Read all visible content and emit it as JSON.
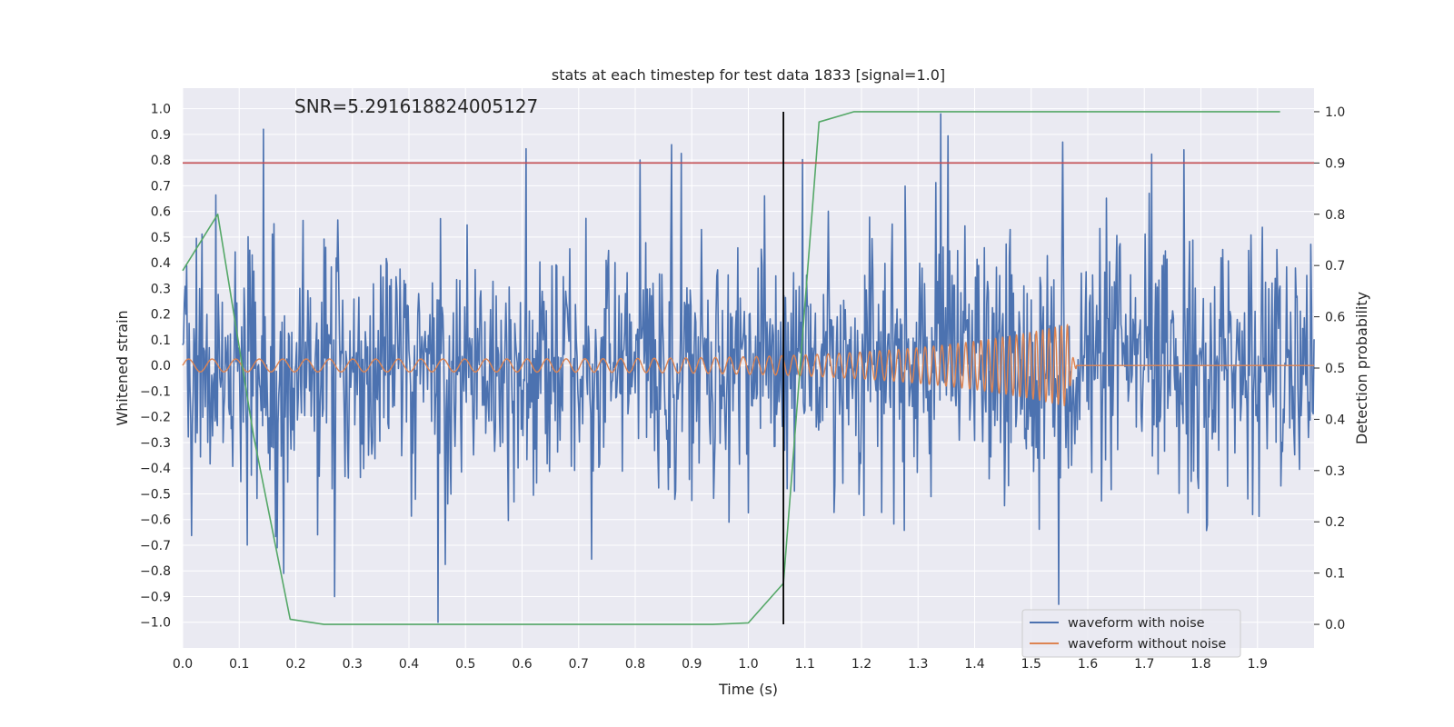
{
  "chart_data": {
    "type": "line",
    "title": "stats at each timestep for test data 1833 [signal=1.0]",
    "xlabel": "Time (s)",
    "ylabel": "Whitened strain",
    "y2label": "Detection probability",
    "xlim": [
      0.0,
      2.0
    ],
    "ylim": [
      -1.1,
      1.08
    ],
    "y2lim": [
      -0.046,
      1.046
    ],
    "xticks": [
      "0.0",
      "0.1",
      "0.2",
      "0.3",
      "0.4",
      "0.5",
      "0.6",
      "0.7",
      "0.8",
      "0.9",
      "1.0",
      "1.1",
      "1.2",
      "1.3",
      "1.4",
      "1.5",
      "1.6",
      "1.7",
      "1.8",
      "1.9"
    ],
    "yticks": [
      "1.0",
      "0.9",
      "0.8",
      "0.7",
      "0.6",
      "0.5",
      "0.4",
      "0.3",
      "0.2",
      "0.1",
      "0.0",
      "−0.1",
      "−0.2",
      "−0.3",
      "−0.4",
      "−0.5",
      "−0.6",
      "−0.7",
      "−0.8",
      "−0.9",
      "−1.0"
    ],
    "y2ticks": [
      "1.0",
      "0.9",
      "0.8",
      "0.7",
      "0.6",
      "0.5",
      "0.4",
      "0.3",
      "0.2",
      "0.1",
      "0.0"
    ],
    "annotation": "SNR=5.291618824005127",
    "threshold": {
      "y2": 0.9,
      "color": "#c44e52"
    },
    "vline": {
      "x": 1.062,
      "y2min": 0.0,
      "y2max": 1.0,
      "color": "#000000"
    },
    "legend": {
      "location": "lower-right",
      "entries": [
        {
          "label": "waveform with noise",
          "color": "#4c72b0"
        },
        {
          "label": "waveform without noise",
          "color": "#dd8452"
        }
      ]
    },
    "series": [
      {
        "name": "waveform with noise",
        "axis": "left",
        "color": "#4c72b0",
        "kind": "noise",
        "approx_std": 0.24,
        "spikes": [
          {
            "x": 0.143,
            "y": 0.92
          },
          {
            "x": 0.452,
            "y": -1.0
          },
          {
            "x": 0.808,
            "y": 0.8
          },
          {
            "x": 0.864,
            "y": 0.86
          },
          {
            "x": 1.34,
            "y": 0.98
          },
          {
            "x": 1.555,
            "y": 0.87
          },
          {
            "x": 1.77,
            "y": 0.84
          },
          {
            "x": 1.548,
            "y": -0.93
          },
          {
            "x": 0.268,
            "y": -0.9
          }
        ]
      },
      {
        "name": "waveform without noise",
        "axis": "left",
        "color": "#dd8452",
        "kind": "chirp",
        "start_amplitude": 0.025,
        "peak_amplitude": 0.16,
        "merger_time": 1.565,
        "start_frequency_hz": 24,
        "end_frequency_hz": 95
      },
      {
        "name": "detection probability",
        "axis": "right",
        "color": "#55a868",
        "kind": "line",
        "x": [
          0.0,
          0.062,
          0.125,
          0.19,
          0.25,
          0.312,
          0.375,
          0.437,
          0.5,
          0.562,
          0.625,
          0.687,
          0.75,
          0.812,
          0.875,
          0.937,
          1.0,
          1.062,
          1.125,
          1.187,
          1.25,
          1.312,
          1.375,
          1.437,
          1.5,
          1.562,
          1.625,
          1.687,
          1.75,
          1.812,
          1.875,
          1.94
        ],
        "y": [
          0.69,
          0.8,
          0.37,
          0.01,
          0.0,
          0.0,
          0.0,
          0.0,
          0.0,
          0.0,
          0.0,
          0.0,
          0.0,
          0.0,
          0.0,
          0.0,
          0.003,
          0.08,
          0.98,
          1.0,
          1.0,
          1.0,
          1.0,
          1.0,
          1.0,
          1.0,
          1.0,
          1.0,
          1.0,
          1.0,
          1.0,
          1.0
        ]
      }
    ]
  }
}
